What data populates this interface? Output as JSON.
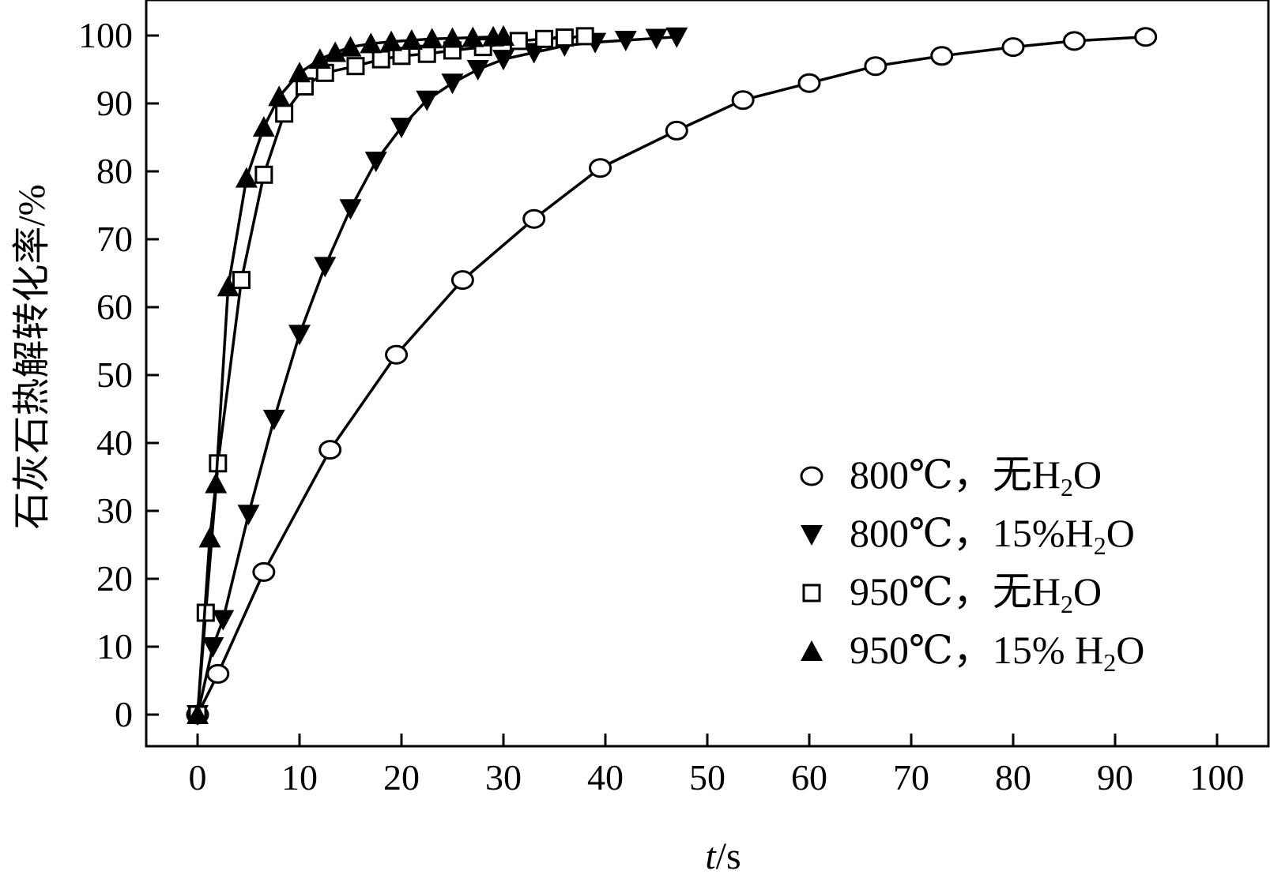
{
  "chart_data": {
    "type": "line",
    "title": "",
    "xlabel": {
      "italic": "t",
      "rest": "/s"
    },
    "ylabel": "石灰石热解转化率/%",
    "xlim": [
      -5,
      105
    ],
    "ylim": [
      -5,
      105
    ],
    "x_ticks": [
      0,
      10,
      20,
      30,
      40,
      50,
      60,
      70,
      80,
      90,
      100
    ],
    "y_ticks": [
      0,
      10,
      20,
      30,
      40,
      50,
      60,
      70,
      80,
      90,
      100
    ],
    "x_tick_labels": [
      "0",
      "10",
      "20",
      "30",
      "40",
      "50",
      "60",
      "70",
      "80",
      "90",
      "100"
    ],
    "y_tick_labels": [
      "0",
      "10",
      "20",
      "30",
      "40",
      "50",
      "60",
      "70",
      "80",
      "90",
      "100"
    ],
    "grid": false,
    "legend_position": "bottom-right",
    "series": [
      {
        "name": "800℃，无H2O",
        "label_parts": {
          "main": "800℃，无H",
          "sub": "2",
          "tail": "O"
        },
        "marker": "circle-open",
        "x": [
          0,
          2,
          6.5,
          13,
          19.5,
          26,
          33,
          39.5,
          47,
          53.5,
          60,
          66.5,
          73,
          80,
          86,
          93
        ],
        "y": [
          0,
          6,
          21,
          39,
          53,
          64,
          73,
          80.5,
          86,
          90.5,
          93,
          95.5,
          97,
          98.3,
          99.2,
          99.8
        ]
      },
      {
        "name": "800℃，15%H2O",
        "label_parts": {
          "main": "800℃，15%H",
          "sub": "2",
          "tail": "O"
        },
        "marker": "triangle-down-filled",
        "x": [
          0,
          1.5,
          2.5,
          5,
          7.5,
          10,
          12.5,
          15,
          17.5,
          20,
          22.5,
          25,
          27.5,
          30,
          33,
          36,
          39,
          42,
          45,
          47
        ],
        "y": [
          0,
          10,
          14,
          29.5,
          43.5,
          56,
          66,
          74.5,
          81.5,
          86.5,
          90.5,
          93,
          95,
          96.5,
          97.5,
          98.5,
          99,
          99.3,
          99.6,
          99.8
        ]
      },
      {
        "name": "950℃，无H2O",
        "label_parts": {
          "main": "950℃，无H",
          "sub": "2",
          "tail": "O"
        },
        "marker": "square-open",
        "x": [
          0,
          0.8,
          2,
          4.3,
          6.5,
          8.5,
          10.5,
          12.5,
          15.5,
          18,
          20,
          22.5,
          25,
          28,
          31.5,
          34,
          36,
          38
        ],
        "y": [
          0,
          15,
          37,
          64,
          79.5,
          88.5,
          92.5,
          94.5,
          95.5,
          96.5,
          97,
          97.3,
          97.8,
          98.3,
          99.2,
          99.5,
          99.7,
          99.9
        ]
      },
      {
        "name": "950℃，15% H2O",
        "label_parts": {
          "main": "950℃，15% H",
          "sub": "2",
          "tail": "O"
        },
        "marker": "triangle-up-filled",
        "x": [
          0,
          1.2,
          1.8,
          3,
          4.8,
          6.5,
          8,
          10,
          12,
          13.5,
          15,
          17,
          19,
          21,
          23,
          25,
          27,
          29,
          30
        ],
        "y": [
          0,
          26,
          34,
          63,
          79,
          86.5,
          91,
          94.5,
          96.5,
          97.5,
          98.3,
          98.8,
          99.1,
          99.3,
          99.5,
          99.6,
          99.7,
          99.8,
          99.9
        ]
      }
    ]
  }
}
